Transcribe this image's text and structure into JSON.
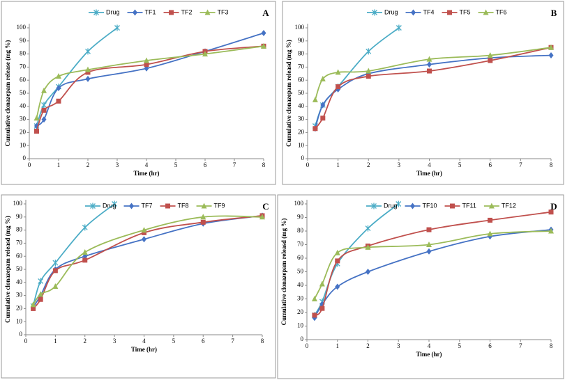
{
  "chart_data": [
    {
      "type": "line",
      "panel": "A",
      "x_label": "Time (hr)",
      "y_label": "Cumulative clonazepam release (mg %)",
      "xlim": [
        0,
        8
      ],
      "xticks": [
        0,
        1,
        2,
        3,
        4,
        5,
        6,
        7,
        8
      ],
      "ylim": [
        0,
        100
      ],
      "yticks": [
        0,
        10,
        20,
        30,
        40,
        50,
        60,
        70,
        80,
        90,
        100
      ],
      "grid": false,
      "series": [
        {
          "name": "Drug",
          "color": "#4bacc6",
          "marker": "star",
          "x": [
            0.25,
            0.5,
            1,
            2,
            3
          ],
          "values": [
            25,
            41,
            55,
            82,
            100
          ]
        },
        {
          "name": "TF1",
          "color": "#4572c4",
          "marker": "diamond",
          "x": [
            0.25,
            0.5,
            1,
            2,
            4,
            6,
            8
          ],
          "values": [
            25,
            30,
            54,
            61,
            69,
            82,
            96
          ]
        },
        {
          "name": "TF2",
          "color": "#c0504d",
          "marker": "square",
          "x": [
            0.25,
            0.5,
            1,
            2,
            4,
            6,
            8
          ],
          "values": [
            21,
            37,
            44,
            66,
            72,
            82,
            86
          ]
        },
        {
          "name": "TF3",
          "color": "#9bbb59",
          "marker": "triangle",
          "x": [
            0.25,
            0.5,
            1,
            2,
            4,
            6,
            8
          ],
          "values": [
            31,
            52,
            63,
            68,
            75,
            80,
            86
          ]
        }
      ]
    },
    {
      "type": "line",
      "panel": "B",
      "x_label": "Time (hr)",
      "y_label": "Cumulative clonazepam releasd (mg %)",
      "xlim": [
        0,
        8
      ],
      "xticks": [
        0,
        1,
        2,
        3,
        4,
        5,
        6,
        7,
        8
      ],
      "ylim": [
        0,
        100
      ],
      "yticks": [
        0,
        10,
        20,
        30,
        40,
        50,
        60,
        70,
        80,
        90,
        100
      ],
      "grid": false,
      "series": [
        {
          "name": "Drug",
          "color": "#4bacc6",
          "marker": "star",
          "x": [
            0.25,
            0.5,
            1,
            2,
            3
          ],
          "values": [
            25,
            41,
            55,
            82,
            100
          ]
        },
        {
          "name": "TF4",
          "color": "#4572c4",
          "marker": "diamond",
          "x": [
            0.25,
            0.5,
            1,
            2,
            4,
            6,
            8
          ],
          "values": [
            23,
            41,
            53,
            65,
            72,
            77,
            79
          ]
        },
        {
          "name": "TF5",
          "color": "#c0504d",
          "marker": "square",
          "x": [
            0.25,
            0.5,
            1,
            2,
            4,
            6,
            8
          ],
          "values": [
            23,
            31,
            55,
            63,
            67,
            75,
            85
          ]
        },
        {
          "name": "TF6",
          "color": "#9bbb59",
          "marker": "triangle",
          "x": [
            0.25,
            0.5,
            1,
            2,
            4,
            6,
            8
          ],
          "values": [
            45,
            61,
            66,
            67,
            76,
            79,
            85
          ]
        }
      ]
    },
    {
      "type": "line",
      "panel": "C",
      "x_label": "Time (hr)",
      "y_label": "Cumulative clonazepam releasd (mg %)",
      "xlim": [
        0,
        8
      ],
      "xticks": [
        0,
        1,
        2,
        3,
        4,
        5,
        6,
        7,
        8
      ],
      "ylim": [
        0,
        100
      ],
      "yticks": [
        0,
        10,
        20,
        30,
        40,
        50,
        60,
        70,
        80,
        90,
        100
      ],
      "grid": false,
      "series": [
        {
          "name": "Drug",
          "color": "#4bacc6",
          "marker": "star",
          "x": [
            0.25,
            0.5,
            1,
            2,
            3
          ],
          "values": [
            22,
            41,
            55,
            82,
            100
          ]
        },
        {
          "name": "TF7",
          "color": "#4572c4",
          "marker": "diamond",
          "x": [
            0.25,
            0.5,
            1,
            2,
            4,
            6,
            8
          ],
          "values": [
            21,
            30,
            50,
            60,
            73,
            85,
            91
          ]
        },
        {
          "name": "TF8",
          "color": "#c0504d",
          "marker": "square",
          "x": [
            0.25,
            0.5,
            1,
            2,
            4,
            6,
            8
          ],
          "values": [
            20,
            27,
            49,
            57,
            78,
            86,
            91
          ]
        },
        {
          "name": "TF9",
          "color": "#9bbb59",
          "marker": "triangle",
          "x": [
            0.25,
            0.5,
            1,
            2,
            4,
            6,
            8
          ],
          "values": [
            23,
            31,
            37,
            63,
            80,
            90,
            90
          ]
        }
      ]
    },
    {
      "type": "line",
      "panel": "D",
      "x_label": "Time (hr)",
      "y_label": "Cumulative clonazepam releasd (mg %)",
      "xlim": [
        0,
        8
      ],
      "xticks": [
        0,
        1,
        2,
        3,
        4,
        5,
        6,
        7,
        8
      ],
      "ylim": [
        0,
        100
      ],
      "yticks": [
        0,
        10,
        20,
        30,
        40,
        50,
        60,
        70,
        80,
        90,
        100
      ],
      "grid": false,
      "series": [
        {
          "name": "Drug",
          "color": "#4bacc6",
          "marker": "star",
          "x": [
            0.25,
            0.5,
            1,
            2,
            3
          ],
          "values": [
            18,
            28,
            56,
            82,
            100
          ]
        },
        {
          "name": "TF10",
          "color": "#4572c4",
          "marker": "diamond",
          "x": [
            0.25,
            0.5,
            1,
            2,
            4,
            6,
            8
          ],
          "values": [
            16,
            26,
            39,
            50,
            65,
            76,
            81
          ]
        },
        {
          "name": "TF11",
          "color": "#c0504d",
          "marker": "square",
          "x": [
            0.25,
            0.5,
            1,
            2,
            4,
            6,
            8
          ],
          "values": [
            18,
            23,
            58,
            69,
            81,
            88,
            94
          ]
        },
        {
          "name": "TF12",
          "color": "#9bbb59",
          "marker": "triangle",
          "x": [
            0.25,
            0.5,
            1,
            2,
            4,
            6,
            8
          ],
          "values": [
            30,
            41,
            64,
            68,
            70,
            78,
            80
          ]
        }
      ]
    }
  ]
}
